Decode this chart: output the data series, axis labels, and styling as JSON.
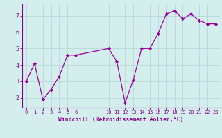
{
  "x": [
    0,
    1,
    2,
    3,
    4,
    5,
    6,
    10,
    11,
    12,
    13,
    14,
    15,
    16,
    17,
    18,
    19,
    20,
    21,
    22,
    23
  ],
  "y": [
    3.0,
    4.1,
    1.9,
    2.5,
    3.3,
    4.6,
    4.6,
    5.0,
    4.2,
    1.7,
    3.1,
    5.0,
    5.0,
    5.9,
    7.1,
    7.3,
    6.8,
    7.1,
    6.7,
    6.5,
    6.5
  ],
  "line_color": "#990099",
  "marker": "D",
  "marker_size": 2.2,
  "bg_color": "#d4eeee",
  "grid_color": "#b8d8d8",
  "xlabel": "Windchill (Refroidissement éolien,°C)",
  "xlabel_color": "#880088",
  "tick_color": "#880088",
  "ylim": [
    1.4,
    7.7
  ],
  "xlim": [
    -0.5,
    23.5
  ],
  "xticks": [
    0,
    1,
    2,
    3,
    4,
    5,
    6,
    10,
    11,
    12,
    13,
    14,
    15,
    16,
    17,
    18,
    19,
    20,
    21,
    22,
    23
  ],
  "yticks": [
    2,
    3,
    4,
    5,
    6,
    7
  ],
  "spine_color": "#880088"
}
